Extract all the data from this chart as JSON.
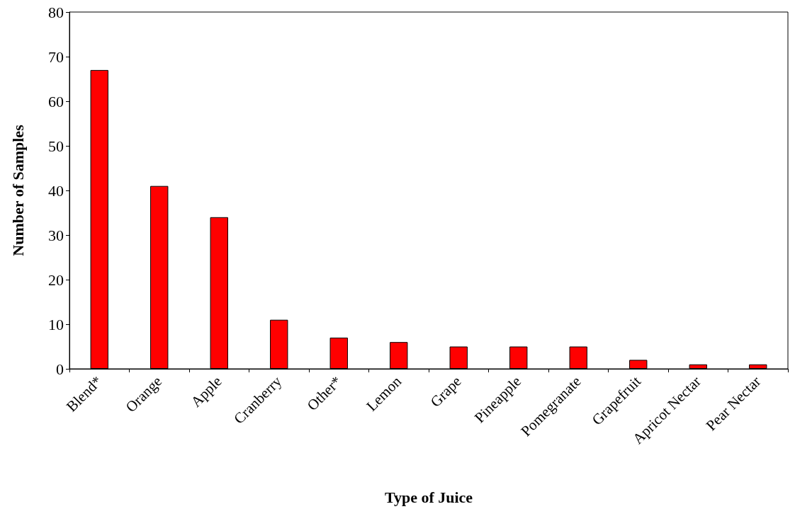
{
  "chart_data": {
    "type": "bar",
    "xlabel": "Type of Juice",
    "ylabel": "Number of Samples",
    "categories": [
      "Blend*",
      "Orange",
      "Apple",
      "Cranberry",
      "Other*",
      "Lemon",
      "Grape",
      "Pineapple",
      "Pomegranate",
      "Grapefruit",
      "Apricot Nectar",
      "Pear Nectar"
    ],
    "values": [
      67,
      41,
      34,
      11,
      7,
      6,
      5,
      5,
      5,
      2,
      1,
      1
    ],
    "color": "#ff0000",
    "ylim": [
      0,
      80
    ],
    "yticks": [
      0,
      10,
      20,
      30,
      40,
      50,
      60,
      70,
      80
    ],
    "grid": false
  }
}
